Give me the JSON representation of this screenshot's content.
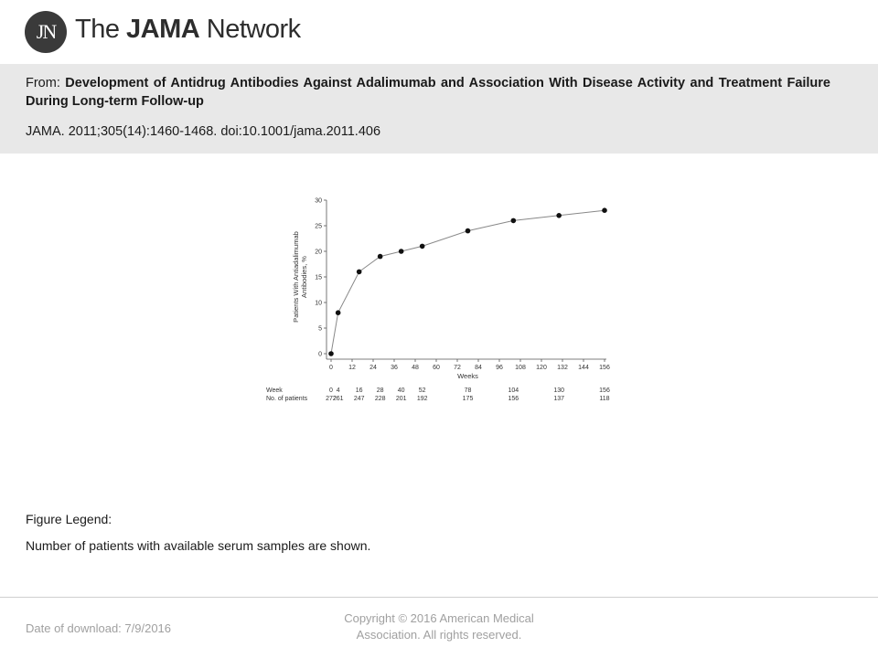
{
  "header": {
    "logo_mark": "JN",
    "brand_prefix": "The ",
    "brand_bold": "JAMA",
    "brand_suffix": " Network"
  },
  "info": {
    "from_label": "From: ",
    "article_title": "Development of Antidrug Antibodies Against Adalimumab and Association With Disease Activity and Treatment Failure During Long-term Follow-up",
    "citation": "JAMA. 2011;305(14):1460-1468. doi:10.1001/jama.2011.406"
  },
  "chart_data": {
    "type": "line",
    "title": "",
    "xlabel": "Weeks",
    "ylabel_line1": "Patients With Antiadalimumab",
    "ylabel_line2": "Antibodies, %",
    "xlim": [
      0,
      156
    ],
    "ylim": [
      0,
      30
    ],
    "x_ticks": [
      0,
      12,
      24,
      36,
      48,
      60,
      72,
      84,
      96,
      108,
      120,
      132,
      144,
      156
    ],
    "y_ticks": [
      0,
      5,
      10,
      15,
      20,
      25,
      30
    ],
    "grid": false,
    "series": [
      {
        "x": [
          0,
          4,
          16,
          28,
          40,
          52,
          78,
          104,
          130,
          156
        ],
        "y": [
          0,
          8,
          16,
          19,
          20,
          21,
          24,
          26,
          27,
          28
        ]
      }
    ],
    "table": {
      "row1_label": "Week",
      "row2_label": "No. of patients",
      "weeks": [
        0,
        4,
        16,
        28,
        40,
        52,
        78,
        104,
        130,
        156
      ],
      "patients": [
        272,
        261,
        247,
        228,
        201,
        192,
        175,
        156,
        137,
        118
      ]
    }
  },
  "legend": {
    "heading": "Figure Legend:",
    "text": "Number of patients with available serum samples are shown."
  },
  "footer": {
    "download_label": "Date of download:  7/9/2016",
    "copyright_line1": "Copyright © 2016 American Medical",
    "copyright_line2": "Association. All rights reserved."
  }
}
